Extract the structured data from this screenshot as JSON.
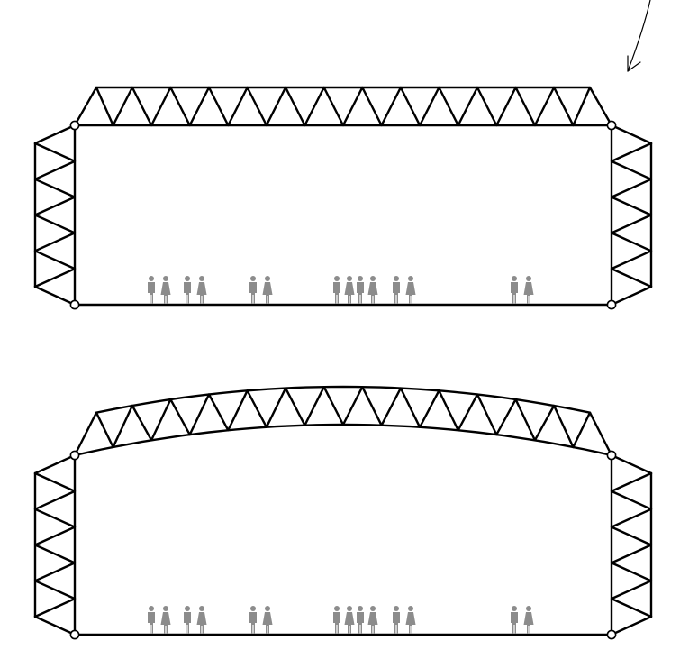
{
  "diagram": {
    "panels": [
      {
        "name": "flat-roof-frame",
        "roof": "flat"
      },
      {
        "name": "cambered-roof-frame",
        "roof": "cambered"
      }
    ],
    "roof_truss_triangles": 14,
    "column_truss_bays": 4,
    "people_groups": [
      2,
      2,
      2,
      4,
      2,
      2
    ],
    "colors": {
      "line": "#000000",
      "people": "#8c8c8c",
      "hinge_fill": "#ffffff",
      "background": "#ffffff"
    },
    "icons": [
      "hinge-icon",
      "person-icon",
      "arrow-icon"
    ]
  }
}
